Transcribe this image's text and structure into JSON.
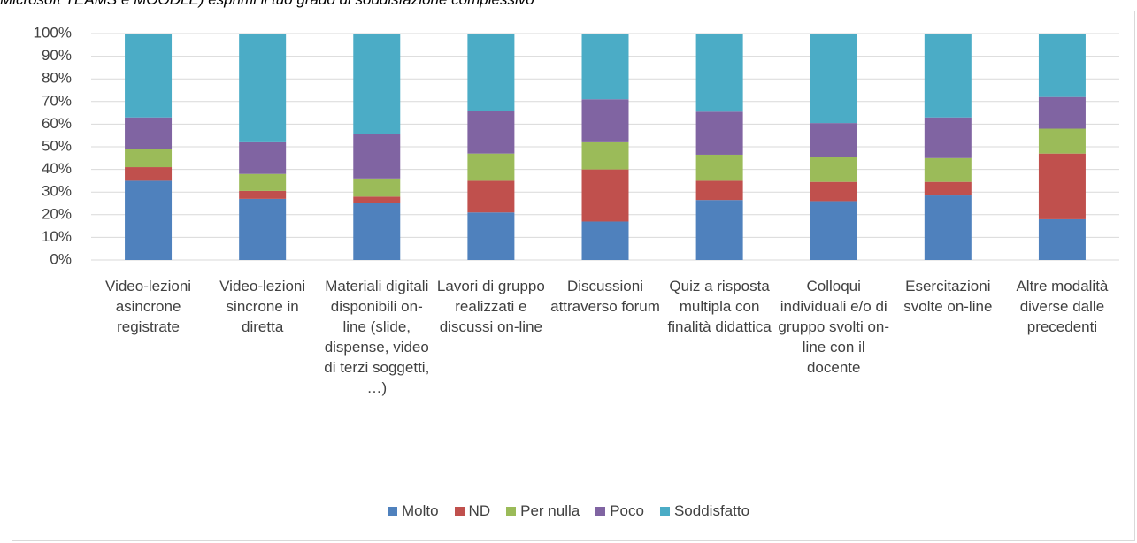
{
  "chart_data": {
    "type": "stacked_bar",
    "title": "Microsoft TEAMS e MOODLE) esprimi il tuo grado di soddisfazione complessivo",
    "categories": [
      "Video-lezioni asincrone registrate",
      "Video-lezioni sincrone in diretta",
      "Materiali digitali disponibili on-line (slide, dispense, video di terzi soggetti, …)",
      "Lavori di gruppo realizzati e discussi on-line",
      "Discussioni attraverso forum",
      "Quiz a risposta multipla con finalità didattica",
      "Colloqui individuali e/o di gruppo svolti on-line con il docente",
      "Esercitazioni svolte on-line",
      "Altre modalità diverse dalle precedenti"
    ],
    "series": [
      {
        "name": "Molto",
        "color": "#4f81bd",
        "values": [
          35,
          27,
          25,
          21,
          17,
          26.5,
          26,
          28.5,
          18
        ]
      },
      {
        "name": "ND",
        "color": "#c0504d",
        "values": [
          6,
          3.5,
          3,
          14,
          23,
          8.5,
          8.5,
          6,
          29
        ]
      },
      {
        "name": "Per nulla",
        "color": "#9bbb59",
        "values": [
          8,
          7.5,
          8,
          12,
          12,
          11.5,
          11,
          10.5,
          11
        ]
      },
      {
        "name": "Poco",
        "color": "#8064a2",
        "values": [
          14,
          14,
          19.5,
          19,
          19,
          19,
          15,
          18,
          14
        ]
      },
      {
        "name": "Soddisfatto",
        "color": "#4bacc6",
        "values": [
          37,
          48,
          44.5,
          34,
          29,
          34.5,
          39.5,
          37,
          28
        ]
      }
    ],
    "ylim": [
      0,
      100
    ],
    "yticks": [
      {
        "value": 0,
        "label": "0%"
      },
      {
        "value": 10,
        "label": "10%"
      },
      {
        "value": 20,
        "label": "20%"
      },
      {
        "value": 30,
        "label": "30%"
      },
      {
        "value": 40,
        "label": "40%"
      },
      {
        "value": 50,
        "label": "50%"
      },
      {
        "value": 60,
        "label": "60%"
      },
      {
        "value": 70,
        "label": "70%"
      },
      {
        "value": 80,
        "label": "80%"
      },
      {
        "value": 90,
        "label": "90%"
      },
      {
        "value": 100,
        "label": "100%"
      }
    ],
    "legend": "bottom"
  }
}
